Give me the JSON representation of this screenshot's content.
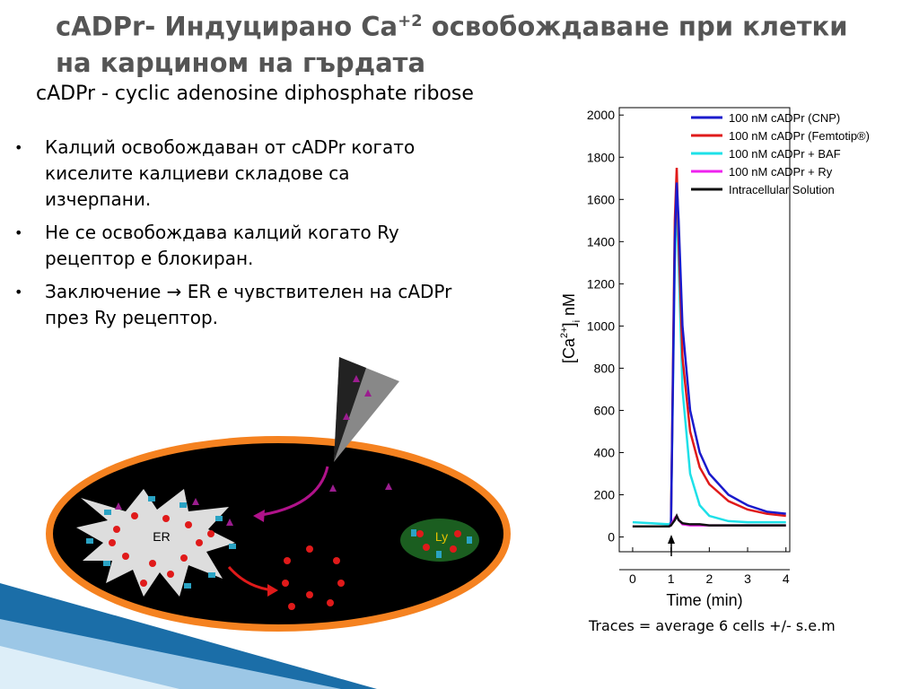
{
  "header": {
    "title_parts": [
      "cADPr- Индуцирано Ca",
      "+2",
      " освобождаване при клетки на карцином на гърдата"
    ],
    "subtitle": "cADPr - cyclic adenosine diphosphate ribose"
  },
  "bullets": [
    "Калций освобождаван от cADPr когато киселите калциеви складове са изчерпани.",
    "Не се освобождава калций когато Ry рецептор е блокиран.",
    "Заключение → ER е чувствителен на cADPr  през Ry рецептор."
  ],
  "diagram": {
    "er": "ER",
    "ly": "Ly"
  },
  "caption": "Traces = average 6 cells +/- s.e.m",
  "chart_data": {
    "type": "line",
    "x": [
      0,
      0.5,
      0.95,
      1.0,
      1.1,
      1.15,
      1.2,
      1.3,
      1.5,
      1.75,
      2,
      2.5,
      3,
      3.5,
      4
    ],
    "series": [
      {
        "name": "100 nM cADPr (CNP)",
        "color": "#1a1acc",
        "values": [
          50,
          50,
          50,
          60,
          1400,
          1680,
          1500,
          1000,
          600,
          400,
          300,
          200,
          150,
          120,
          110
        ]
      },
      {
        "name": "100 nM cADPr (Femtotip®)",
        "color": "#e01a1a",
        "values": [
          50,
          50,
          50,
          60,
          1500,
          1750,
          1400,
          850,
          500,
          330,
          250,
          170,
          130,
          110,
          100
        ]
      },
      {
        "name": "100 nM cADPr + BAF",
        "color": "#1ee0e8",
        "values": [
          70,
          65,
          60,
          70,
          1300,
          1620,
          1300,
          700,
          300,
          150,
          100,
          75,
          70,
          70,
          70
        ]
      },
      {
        "name": "100 nM cADPr + Ry",
        "color": "#ee22ee",
        "values": [
          50,
          50,
          50,
          55,
          90,
          100,
          80,
          60,
          55,
          55,
          55,
          55,
          55,
          55,
          55
        ]
      },
      {
        "name": "Intracellular Solution",
        "color": "#111111",
        "values": [
          50,
          50,
          50,
          55,
          80,
          100,
          80,
          65,
          60,
          60,
          55,
          55,
          55,
          55,
          55
        ]
      }
    ],
    "xlim": [
      -0.35,
      4.1
    ],
    "ylim": [
      -70,
      2035
    ],
    "xticks": [
      0,
      1,
      2,
      3,
      4
    ],
    "yticks": [
      0,
      200,
      400,
      600,
      800,
      1000,
      1200,
      1400,
      1600,
      1800,
      2000
    ],
    "xlabel": "Time (min)",
    "ylabel_parts": [
      "[Ca",
      "2+",
      "]",
      "i",
      " nM"
    ]
  }
}
